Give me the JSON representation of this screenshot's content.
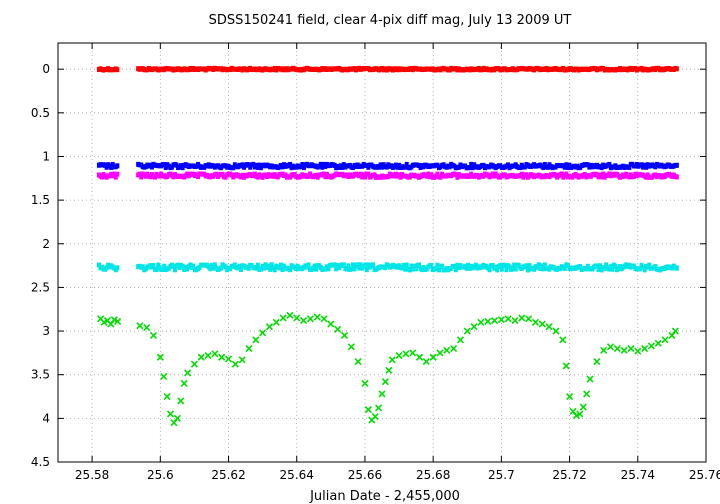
{
  "chart_data": {
    "type": "scatter",
    "title": "SDSS150241 field, clear 4-pix diff mag, July 13  2009 UT",
    "xlabel": "Julian Date - 2,455,000",
    "ylabel": "",
    "xlim": [
      25.57,
      25.76
    ],
    "ylim": [
      4.5,
      -0.3
    ],
    "y_inverted": true,
    "grid": true,
    "legend": "none",
    "x_ticks": [
      25.58,
      25.6,
      25.62,
      25.64,
      25.66,
      25.68,
      25.7,
      25.72,
      25.74,
      25.76
    ],
    "x_tick_labels": [
      "25.58",
      "25.6",
      "25.62",
      "25.64",
      "25.66",
      "25.68",
      "25.7",
      "25.72",
      "25.74",
      "25.76"
    ],
    "y_ticks": [
      0,
      0.5,
      1,
      1.5,
      2,
      2.5,
      3,
      3.5,
      4,
      4.5
    ],
    "y_tick_labels": [
      "0",
      "0.5",
      "1",
      "1.5",
      "2",
      "2.5",
      "3",
      "3.5",
      "4",
      "4.5"
    ],
    "observing_segments": [
      [
        25.582,
        25.5875
      ],
      [
        25.5935,
        25.7515
      ]
    ],
    "series": [
      {
        "color": "#ff0000",
        "marker": "square",
        "level": 0.0,
        "scatter": 0.01
      },
      {
        "color": "#0000ff",
        "marker": "square",
        "level": 1.11,
        "scatter": 0.02
      },
      {
        "color": "#ff00ff",
        "marker": "square",
        "level": 1.22,
        "scatter": 0.02
      },
      {
        "color": "#00e5e5",
        "marker": "square",
        "level": 2.27,
        "scatter": 0.03
      },
      {
        "color": "#00dd00",
        "marker": "cross",
        "x": [
          25.5825,
          25.5835,
          25.5845,
          25.5855,
          25.5865,
          25.5875,
          25.594,
          25.596,
          25.598,
          25.6,
          25.601,
          25.602,
          25.603,
          25.604,
          25.605,
          25.606,
          25.607,
          25.608,
          25.61,
          25.612,
          25.614,
          25.616,
          25.618,
          25.62,
          25.622,
          25.624,
          25.626,
          25.628,
          25.63,
          25.632,
          25.634,
          25.636,
          25.638,
          25.64,
          25.642,
          25.644,
          25.646,
          25.648,
          25.65,
          25.652,
          25.654,
          25.656,
          25.658,
          25.66,
          25.661,
          25.662,
          25.663,
          25.664,
          25.665,
          25.666,
          25.667,
          25.668,
          25.67,
          25.672,
          25.674,
          25.676,
          25.678,
          25.68,
          25.682,
          25.684,
          25.686,
          25.688,
          25.69,
          25.692,
          25.694,
          25.696,
          25.698,
          25.7,
          25.702,
          25.704,
          25.706,
          25.708,
          25.71,
          25.712,
          25.714,
          25.716,
          25.718,
          25.719,
          25.72,
          25.721,
          25.722,
          25.723,
          25.724,
          25.725,
          25.726,
          25.728,
          25.73,
          25.732,
          25.734,
          25.736,
          25.738,
          25.74,
          25.742,
          25.744,
          25.746,
          25.748,
          25.75,
          25.751
        ],
        "y": [
          2.86,
          2.9,
          2.88,
          2.92,
          2.87,
          2.89,
          2.94,
          2.96,
          3.05,
          3.3,
          3.52,
          3.75,
          3.95,
          4.05,
          4.0,
          3.8,
          3.6,
          3.48,
          3.38,
          3.3,
          3.28,
          3.26,
          3.3,
          3.32,
          3.38,
          3.33,
          3.2,
          3.1,
          3.02,
          2.95,
          2.9,
          2.85,
          2.82,
          2.85,
          2.88,
          2.86,
          2.84,
          2.86,
          2.92,
          2.98,
          3.05,
          3.18,
          3.35,
          3.6,
          3.9,
          4.02,
          3.98,
          3.88,
          3.72,
          3.58,
          3.45,
          3.33,
          3.28,
          3.26,
          3.25,
          3.3,
          3.35,
          3.3,
          3.25,
          3.22,
          3.2,
          3.1,
          3.0,
          2.95,
          2.9,
          2.89,
          2.88,
          2.87,
          2.86,
          2.88,
          2.85,
          2.86,
          2.9,
          2.92,
          2.95,
          3.0,
          3.1,
          3.4,
          3.75,
          3.92,
          3.97,
          3.95,
          3.87,
          3.72,
          3.55,
          3.35,
          3.22,
          3.18,
          3.2,
          3.22,
          3.2,
          3.23,
          3.2,
          3.17,
          3.14,
          3.1,
          3.05,
          3.0
        ]
      }
    ]
  }
}
